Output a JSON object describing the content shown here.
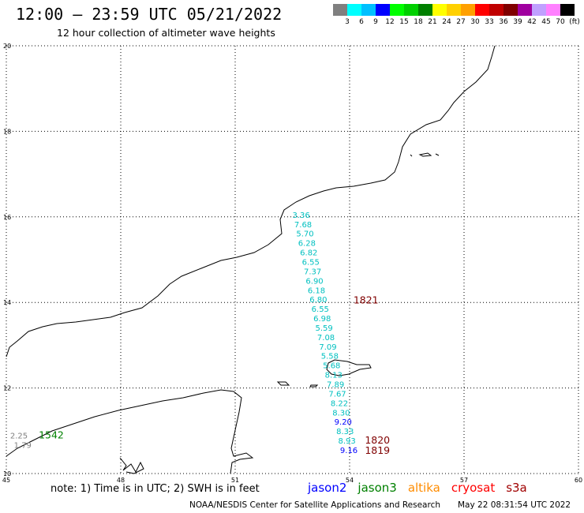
{
  "header": {
    "title": "12:00 – 23:59 UTC 05/21/2022",
    "subtitle": "12 hour collection of altimeter wave heights"
  },
  "colorbar": {
    "colors": [
      "#808080",
      "#00ffff",
      "#00c0ff",
      "#0000ff",
      "#00ff00",
      "#00d000",
      "#008000",
      "#ffff00",
      "#ffd000",
      "#ffa000",
      "#ff0000",
      "#c00000",
      "#800000",
      "#a000a0",
      "#c0a0ff",
      "#ff80ff",
      "#000000"
    ],
    "labels": [
      "3",
      "6",
      "9",
      "12",
      "15",
      "18",
      "21",
      "24",
      "27",
      "30",
      "33",
      "36",
      "39",
      "42",
      "45",
      "70",
      "(ft)"
    ]
  },
  "axes": {
    "lon_labels": [
      "45",
      "48",
      "51",
      "54",
      "57",
      "60"
    ],
    "lat_labels": [
      "20",
      "18",
      "16",
      "14",
      "12",
      "10"
    ],
    "lon_range": [
      45,
      60
    ],
    "lat_range": [
      10,
      20
    ],
    "grid": "dotted"
  },
  "track_jason3": {
    "color": "#00c0c0",
    "values": [
      {
        "text": "3.36",
        "lon": 52.5,
        "lat": 15.98
      },
      {
        "text": "7.68",
        "lon": 52.55,
        "lat": 15.76
      },
      {
        "text": "5.70",
        "lon": 52.6,
        "lat": 15.54
      },
      {
        "text": "6.28",
        "lon": 52.65,
        "lat": 15.32
      },
      {
        "text": "6.82",
        "lon": 52.7,
        "lat": 15.1
      },
      {
        "text": "6.55",
        "lon": 52.75,
        "lat": 14.88
      },
      {
        "text": "7.37",
        "lon": 52.8,
        "lat": 14.66
      },
      {
        "text": "6.90",
        "lon": 52.85,
        "lat": 14.44
      },
      {
        "text": "6.18",
        "lon": 52.9,
        "lat": 14.22
      },
      {
        "text": "6.80",
        "lon": 52.95,
        "lat": 14.0
      },
      {
        "text": "6.55",
        "lon": 53.0,
        "lat": 13.78
      },
      {
        "text": "6.98",
        "lon": 53.05,
        "lat": 13.56
      },
      {
        "text": "5.59",
        "lon": 53.1,
        "lat": 13.34
      },
      {
        "text": "7.08",
        "lon": 53.15,
        "lat": 13.12
      },
      {
        "text": "7.09",
        "lon": 53.2,
        "lat": 12.9
      },
      {
        "text": "5.58",
        "lon": 53.25,
        "lat": 12.68
      },
      {
        "text": "5.68",
        "lon": 53.3,
        "lat": 12.46
      },
      {
        "text": "8.13",
        "lon": 53.35,
        "lat": 12.24
      },
      {
        "text": "7.89",
        "lon": 53.4,
        "lat": 12.02
      },
      {
        "text": "7.67",
        "lon": 53.45,
        "lat": 11.8
      },
      {
        "text": "8.22",
        "lon": 53.5,
        "lat": 11.58
      },
      {
        "text": "8.30",
        "lon": 53.55,
        "lat": 11.36
      },
      {
        "text": "9.20",
        "lon": 53.6,
        "lat": 11.14,
        "color": "#0000ff"
      },
      {
        "text": "8.33",
        "lon": 53.65,
        "lat": 10.92
      },
      {
        "text": "8.93",
        "lon": 53.7,
        "lat": 10.7
      },
      {
        "text": "9.16",
        "lon": 53.75,
        "lat": 10.48,
        "color": "#0000ff"
      }
    ]
  },
  "pass_times": [
    {
      "text": "1821",
      "lon": 54.1,
      "lat": 13.98,
      "color": "#800000"
    },
    {
      "text": "1820",
      "lon": 54.4,
      "lat": 10.7,
      "color": "#800000"
    },
    {
      "text": "1819",
      "lon": 54.4,
      "lat": 10.46,
      "color": "#800000"
    },
    {
      "text": "1542",
      "lon": 45.85,
      "lat": 10.82,
      "color": "#008000"
    }
  ],
  "west_values": [
    {
      "text": "2.25",
      "lon": 45.1,
      "lat": 10.82,
      "color": "#808080"
    },
    {
      "text": "1.79",
      "lon": 45.2,
      "lat": 10.6,
      "color": "#808080"
    }
  ],
  "note": "note: 1) Time is in UTC; 2) SWH is in feet",
  "legend": [
    {
      "label": "jason2",
      "color": "#0000ff"
    },
    {
      "label": "jason3",
      "color": "#008000"
    },
    {
      "label": "altika",
      "color": "#ff8c00"
    },
    {
      "label": "cryosat",
      "color": "#ff0000"
    },
    {
      "label": "s3a",
      "color": "#a00000"
    }
  ],
  "footer": {
    "left": "NOAA/NESDIS Center for Satellite Applications and Research",
    "right": "May 22 08:31:54 UTC 2022"
  }
}
